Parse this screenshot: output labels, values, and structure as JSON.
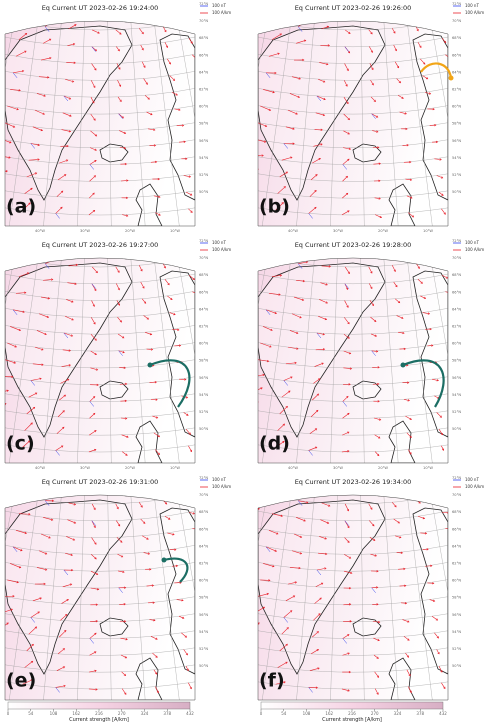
{
  "panels": [
    {
      "title": "Eq Current UT 2023-02-26 19:24:00",
      "label": "(a)"
    },
    {
      "title": "Eq Current UT 2023-02-26 19:26:00",
      "label": "(b)"
    },
    {
      "title": "Eq Current UT 2023-02-26 19:27:00",
      "label": "(c)"
    },
    {
      "title": "Eq Current UT 2023-02-26 19:28:00",
      "label": "(d)"
    },
    {
      "title": "Eq Current UT 2023-02-26 19:31:00",
      "label": "(e)"
    },
    {
      "title": "Eq Current UT 2023-02-26 19:34:00",
      "label": "(f)"
    }
  ],
  "legend": [
    {
      "label": "100 nT",
      "color": "#3344ee"
    },
    {
      "label": "100 A/km",
      "color": "#e8202a"
    }
  ],
  "latitude_labels": [
    "72°N",
    "70°N",
    "68°N",
    "66°N",
    "64°N",
    "62°N",
    "60°N",
    "58°N",
    "56°N",
    "54°N",
    "52°N",
    "50°N"
  ],
  "longitude_labels": [
    "40°W",
    "30°W",
    "20°W",
    "10°W"
  ],
  "colorbar": {
    "label": "Current strength [A/km]",
    "lim": [
      0,
      432
    ],
    "ticks": [
      0,
      54,
      108,
      162,
      216,
      270,
      324,
      378,
      432
    ],
    "colors": [
      "#ffffff",
      "#f6d3e4",
      "#d7aec4"
    ]
  }
}
